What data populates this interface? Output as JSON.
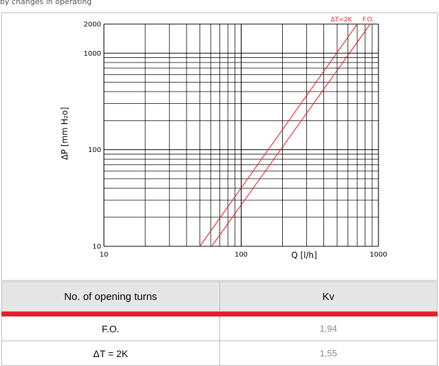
{
  "caption": "by changes in operating",
  "chart_data": {
    "type": "line",
    "x_scale": "log",
    "y_scale": "log",
    "xlim": [
      10,
      1000
    ],
    "ylim": [
      10,
      2000
    ],
    "xlabel": "Q [l/h]",
    "ylabel": "ΔP [mm H₂o]",
    "x_tick_labels": [
      "10",
      "100",
      "1000"
    ],
    "y_tick_labels": [
      "10",
      "100",
      "1000",
      "2000"
    ],
    "grid": true,
    "series": [
      {
        "name": "ΔT=2K",
        "color": "#e3202a",
        "x": [
          50,
          700
        ],
        "y": [
          10,
          2000
        ]
      },
      {
        "name": "F.O.",
        "color": "#e3202a",
        "x": [
          61,
          870
        ],
        "y": [
          10,
          2000
        ]
      }
    ]
  },
  "table": {
    "headers": [
      "No. of opening turns",
      "Kv"
    ],
    "rows": [
      {
        "label": "F.O.",
        "value": "1,94"
      },
      {
        "label": "ΔT = 2K",
        "value": "1,55"
      }
    ],
    "accent_color": "#e3202a"
  }
}
